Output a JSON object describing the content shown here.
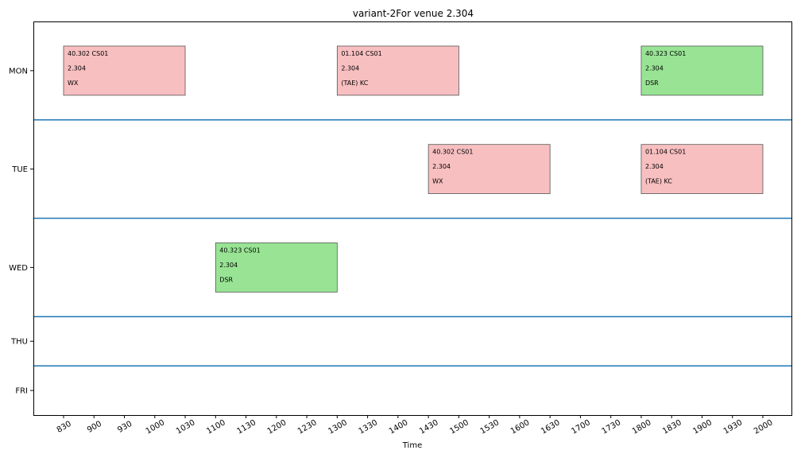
{
  "chart_data": {
    "type": "timetable",
    "title": "variant-2For venue 2.304",
    "xlabel": "Time",
    "ylabel": "",
    "x_ticks": [
      "830",
      "900",
      "930",
      "1000",
      "1030",
      "1100",
      "1130",
      "1200",
      "1230",
      "1300",
      "1330",
      "1400",
      "1430",
      "1500",
      "1530",
      "1600",
      "1630",
      "1700",
      "1730",
      "1800",
      "1830",
      "1900",
      "1930",
      "2000"
    ],
    "days": [
      "MON",
      "TUE",
      "WED",
      "THU",
      "FRI"
    ],
    "grid": false,
    "colors": {
      "red": "#f8bfc0",
      "green": "#98e494",
      "separator": "#1f77b4"
    },
    "events": [
      {
        "day": "MON",
        "start": "830",
        "end": "1030",
        "course": "40.302 CS01",
        "venue": "2.304",
        "instructor": "WX",
        "color": "red"
      },
      {
        "day": "MON",
        "start": "1300",
        "end": "1500",
        "course": "01.104 CS01",
        "venue": "2.304",
        "instructor": "(TAE) KC",
        "color": "red"
      },
      {
        "day": "MON",
        "start": "1800",
        "end": "2000",
        "course": "40.323 CS01",
        "venue": "2.304",
        "instructor": "DSR",
        "color": "green"
      },
      {
        "day": "TUE",
        "start": "1430",
        "end": "1630",
        "course": "40.302 CS01",
        "venue": "2.304",
        "instructor": "WX",
        "color": "red"
      },
      {
        "day": "TUE",
        "start": "1800",
        "end": "2000",
        "course": "01.104 CS01",
        "venue": "2.304",
        "instructor": "(TAE) KC",
        "color": "red"
      },
      {
        "day": "WED",
        "start": "1100",
        "end": "1300",
        "course": "40.323 CS01",
        "venue": "2.304",
        "instructor": "DSR",
        "color": "green"
      }
    ]
  }
}
